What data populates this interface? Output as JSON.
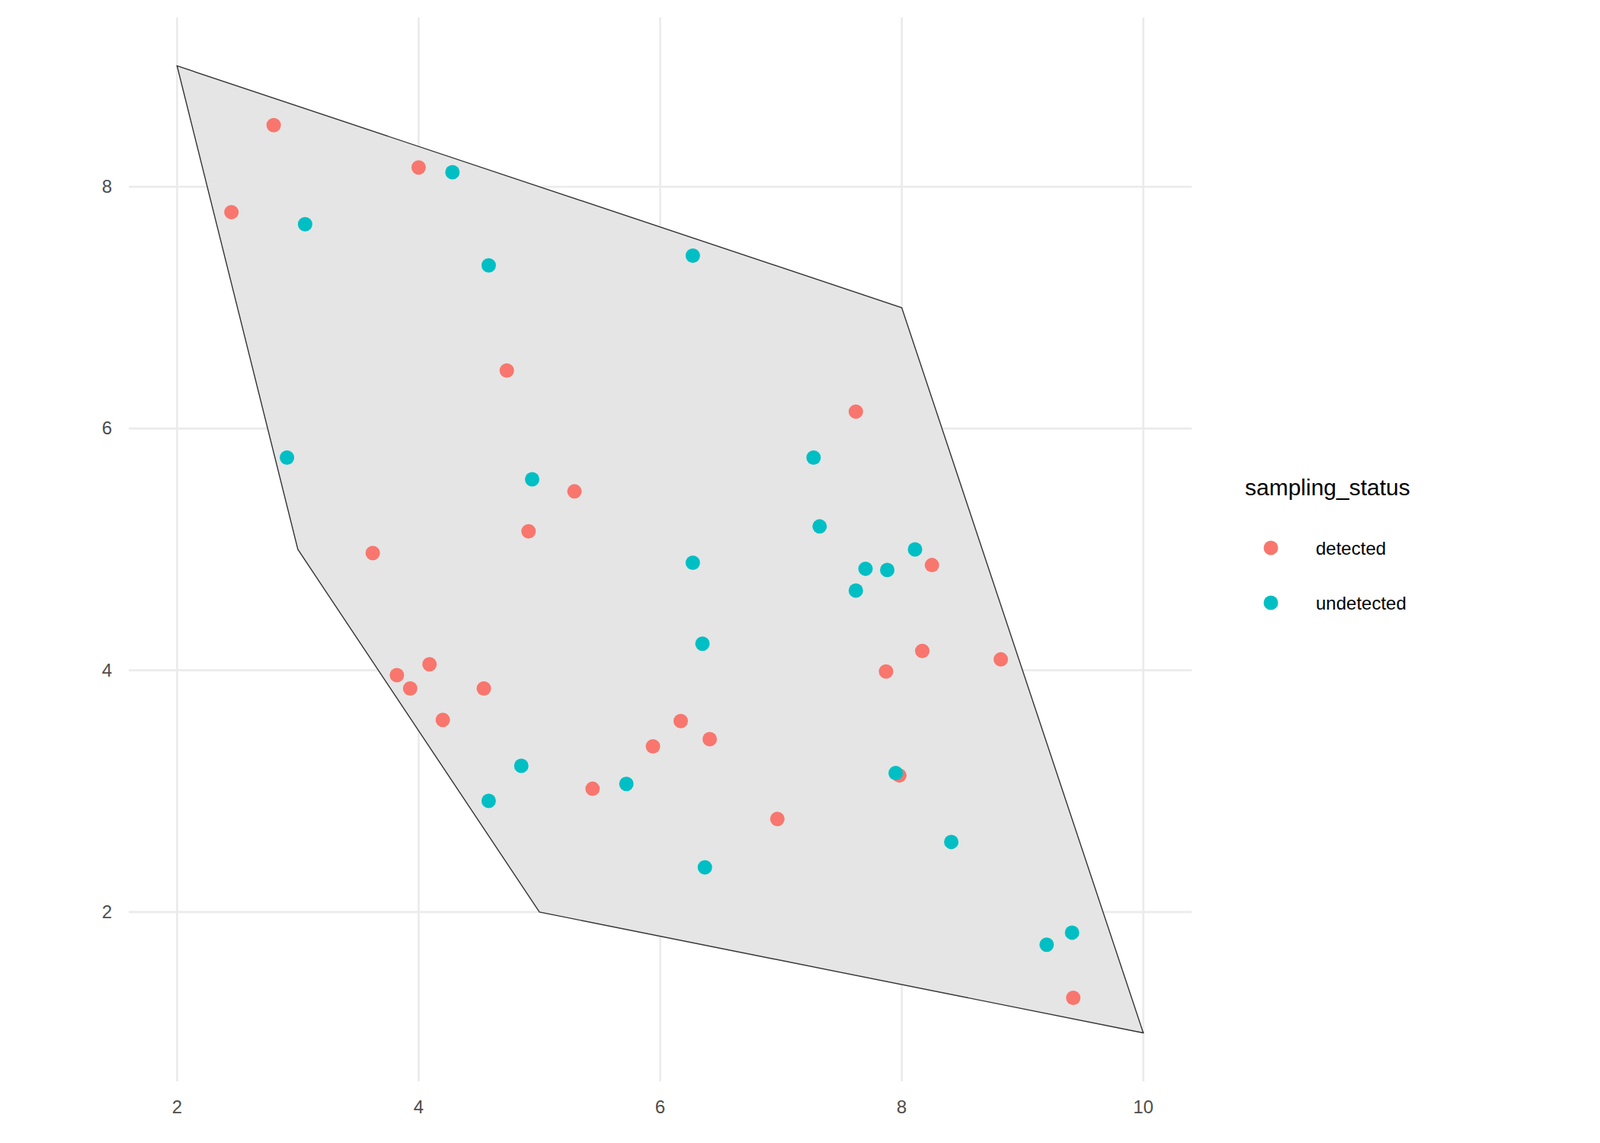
{
  "chart_data": {
    "type": "scatter",
    "legend_title": "sampling_status",
    "legend": "right",
    "grid": true,
    "xlim": [
      1.6,
      10.4
    ],
    "ylim": [
      0.6,
      9.4
    ],
    "xticks": [
      2,
      4,
      6,
      8,
      10
    ],
    "yticks": [
      2,
      4,
      6,
      8
    ],
    "polygon": {
      "x": [
        2,
        8,
        10,
        5,
        3
      ],
      "y": [
        9,
        7,
        1,
        2,
        5
      ]
    },
    "series": [
      {
        "name": "detected",
        "color": "#F8766D",
        "marker": "circle",
        "x": [
          2.8,
          2.45,
          4.0,
          4.73,
          7.62,
          5.29,
          4.91,
          3.62,
          8.25,
          8.17,
          8.82,
          7.87,
          3.82,
          4.09,
          3.93,
          4.54,
          4.2,
          6.17,
          6.41,
          5.94,
          5.44,
          6.97,
          7.98,
          9.42
        ],
        "values": [
          8.51,
          7.79,
          8.16,
          6.48,
          6.14,
          5.48,
          5.15,
          4.97,
          4.87,
          4.16,
          4.09,
          3.99,
          3.96,
          4.05,
          3.85,
          3.85,
          3.59,
          3.58,
          3.43,
          3.37,
          3.02,
          2.77,
          3.13,
          1.29
        ]
      },
      {
        "name": "undetected",
        "color": "#00BFC4",
        "marker": "circle",
        "x": [
          4.28,
          3.06,
          4.58,
          6.27,
          2.91,
          7.27,
          4.94,
          7.32,
          6.27,
          8.11,
          7.7,
          7.88,
          7.62,
          6.35,
          4.85,
          4.58,
          5.72,
          7.95,
          8.41,
          6.37,
          9.2,
          9.41
        ],
        "values": [
          8.12,
          7.69,
          7.35,
          7.43,
          5.76,
          5.76,
          5.58,
          5.19,
          4.89,
          5.0,
          4.84,
          4.83,
          4.66,
          4.22,
          3.21,
          2.92,
          3.06,
          3.15,
          2.58,
          2.37,
          1.73,
          1.83
        ]
      }
    ]
  }
}
